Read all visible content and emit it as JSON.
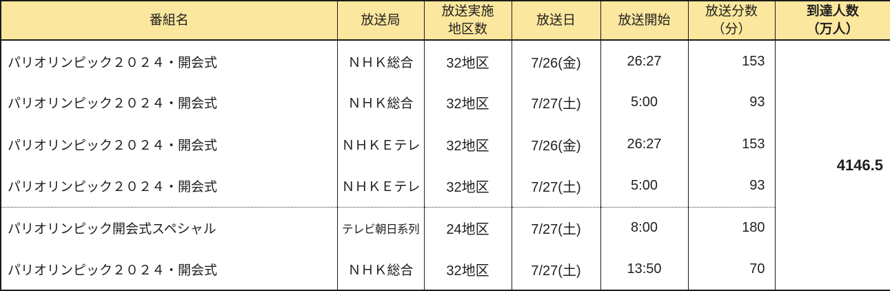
{
  "table": {
    "headers": {
      "program": "番組名",
      "station": "放送局",
      "regions_line1": "放送実施",
      "regions_line2": "地区数",
      "date": "放送日",
      "start": "放送開始",
      "minutes_line1": "放送分数",
      "minutes_line2": "（分）",
      "reach_line1": "到達人数",
      "reach_line2": "（万人）"
    },
    "rows": [
      {
        "program": "パリオリンピック２０２４・開会式",
        "station": "ＮＨＫ総合",
        "regions": "32地区",
        "date": "7/26(金)",
        "start": "26:27",
        "minutes": "153"
      },
      {
        "program": "パリオリンピック２０２４・開会式",
        "station": "ＮＨＫ総合",
        "regions": "32地区",
        "date": "7/27(土)",
        "start": "5:00",
        "minutes": "93"
      },
      {
        "program": "パリオリンピック２０２４・開会式",
        "station": "ＮＨＫＥテレ",
        "regions": "32地区",
        "date": "7/26(金)",
        "start": "26:27",
        "minutes": "153"
      },
      {
        "program": "パリオリンピック２０２４・開会式",
        "station": "ＮＨＫＥテレ",
        "regions": "32地区",
        "date": "7/27(土)",
        "start": "5:00",
        "minutes": "93"
      },
      {
        "program": "パリオリンピック開会式スペシャル",
        "station": "テレビ朝日系列",
        "regions": "24地区",
        "date": "7/27(土)",
        "start": "8:00",
        "minutes": "180"
      },
      {
        "program": "パリオリンピック２０２４・開会式",
        "station": "ＮＨＫ総合",
        "regions": "32地区",
        "date": "7/27(土)",
        "start": "13:50",
        "minutes": "70"
      }
    ],
    "reach_total": "4146.5"
  },
  "colors": {
    "header_bg": "#fce79e",
    "border": "#1a1a1a",
    "text": "#1f1f1f"
  }
}
